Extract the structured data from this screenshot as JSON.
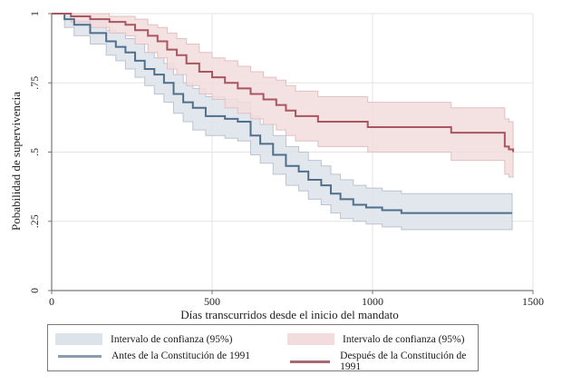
{
  "chart_data": {
    "type": "line",
    "subtype": "kaplan-meier step survival curves with 95% confidence bands",
    "title": "",
    "xlabel": "Días transcurridos desde el inicio del mandato",
    "ylabel": "Pobabilidad de supervivencia",
    "xlim": [
      0,
      1500
    ],
    "ylim": [
      0,
      1
    ],
    "xticks": [
      0,
      500,
      1000,
      1500
    ],
    "xtick_labels": [
      "0",
      "500",
      "1000",
      "1500"
    ],
    "yticks": [
      0,
      0.25,
      0.5,
      0.75,
      1
    ],
    "ytick_labels": [
      "0",
      ".25",
      ".5",
      ".75",
      "1"
    ],
    "grid": true,
    "legend_position": "bottom",
    "series": [
      {
        "name": "Antes de la Constitución de 1991",
        "color": "#4f6f8c",
        "band_color": "#dde3ea",
        "band_edge_color": "#b9c4d0",
        "band_label": "Intervalo de confianza (95%)",
        "x": [
          0,
          40,
          70,
          120,
          170,
          200,
          230,
          260,
          290,
          320,
          350,
          380,
          410,
          440,
          480,
          540,
          580,
          620,
          650,
          690,
          730,
          770,
          800,
          840,
          870,
          900,
          940,
          980,
          1030,
          1090,
          1435
        ],
        "y": [
          1.0,
          0.98,
          0.96,
          0.93,
          0.9,
          0.88,
          0.86,
          0.83,
          0.8,
          0.78,
          0.75,
          0.71,
          0.68,
          0.66,
          0.63,
          0.62,
          0.61,
          0.56,
          0.53,
          0.49,
          0.45,
          0.43,
          0.4,
          0.38,
          0.35,
          0.33,
          0.31,
          0.3,
          0.29,
          0.28,
          0.28
        ],
        "lower": [
          1.0,
          0.95,
          0.92,
          0.89,
          0.85,
          0.83,
          0.8,
          0.77,
          0.74,
          0.71,
          0.68,
          0.64,
          0.61,
          0.58,
          0.56,
          0.55,
          0.54,
          0.49,
          0.46,
          0.42,
          0.38,
          0.36,
          0.33,
          0.31,
          0.28,
          0.26,
          0.25,
          0.24,
          0.23,
          0.22,
          0.22
        ],
        "upper": [
          1.0,
          1.0,
          0.99,
          0.97,
          0.94,
          0.93,
          0.91,
          0.89,
          0.86,
          0.84,
          0.82,
          0.78,
          0.75,
          0.73,
          0.7,
          0.69,
          0.68,
          0.63,
          0.6,
          0.56,
          0.52,
          0.5,
          0.47,
          0.45,
          0.42,
          0.4,
          0.38,
          0.37,
          0.36,
          0.35,
          0.35
        ]
      },
      {
        "name": "Después de la Constitución de 1991",
        "color": "#a85660",
        "band_color": "#f2dcdd",
        "band_edge_color": "#e2bfc2",
        "band_label": "Intervalo de confianza (95%)",
        "x": [
          0,
          60,
          120,
          180,
          230,
          260,
          300,
          330,
          360,
          390,
          420,
          460,
          500,
          540,
          580,
          620,
          660,
          700,
          730,
          760,
          830,
          985,
          1245,
          1412,
          1425,
          1438
        ],
        "y": [
          1.0,
          0.99,
          0.98,
          0.97,
          0.96,
          0.94,
          0.92,
          0.9,
          0.87,
          0.85,
          0.82,
          0.79,
          0.77,
          0.75,
          0.73,
          0.71,
          0.69,
          0.67,
          0.65,
          0.63,
          0.61,
          0.59,
          0.57,
          0.52,
          0.51,
          0.5
        ],
        "lower": [
          1.0,
          0.97,
          0.95,
          0.93,
          0.92,
          0.89,
          0.86,
          0.84,
          0.8,
          0.78,
          0.74,
          0.71,
          0.69,
          0.66,
          0.64,
          0.62,
          0.6,
          0.58,
          0.56,
          0.54,
          0.52,
          0.5,
          0.47,
          0.42,
          0.41,
          0.41
        ],
        "upper": [
          1.0,
          1.0,
          1.0,
          0.99,
          0.99,
          0.98,
          0.96,
          0.95,
          0.93,
          0.91,
          0.89,
          0.86,
          0.84,
          0.83,
          0.81,
          0.79,
          0.77,
          0.76,
          0.74,
          0.72,
          0.7,
          0.68,
          0.66,
          0.62,
          0.61,
          0.61
        ]
      }
    ]
  },
  "legend": {
    "items": [
      {
        "label": "Intervalo de confianza (95%)",
        "kind": "band",
        "color": "#dde3ea"
      },
      {
        "label": "Intervalo de confianza (95%)",
        "kind": "band",
        "color": "#f2dcdd"
      },
      {
        "label": "Antes de la Constitución de 1991",
        "kind": "line",
        "color": "#8a9cb0"
      },
      {
        "label": "Después de la Constitución de 1991",
        "kind": "line",
        "color": "#a86a72"
      }
    ]
  }
}
